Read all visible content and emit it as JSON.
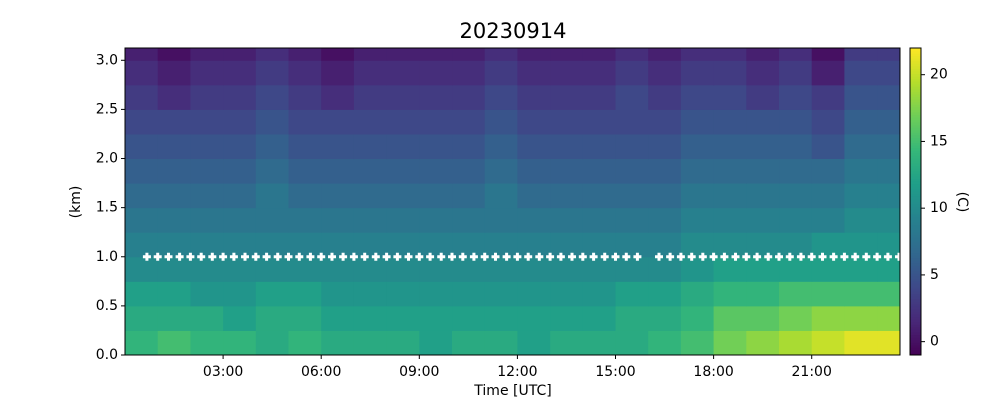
{
  "chart_data": {
    "type": "heatmap",
    "title": "20230914",
    "xlabel": "Time [UTC]",
    "ylabel": "(km)",
    "colorbar_label": "(C)",
    "colormap": "viridis",
    "xlim": [
      0,
      23.7
    ],
    "ylim": [
      0,
      3.125
    ],
    "xticks": [
      {
        "value": 3,
        "label": "03:00"
      },
      {
        "value": 6,
        "label": "06:00"
      },
      {
        "value": 9,
        "label": "09:00"
      },
      {
        "value": 12,
        "label": "12:00"
      },
      {
        "value": 15,
        "label": "15:00"
      },
      {
        "value": 18,
        "label": "18:00"
      },
      {
        "value": 21,
        "label": "21:00"
      }
    ],
    "yticks": [
      {
        "value": 0,
        "label": "0.0"
      },
      0.5,
      {
        "value": 1,
        "label": "1.0"
      },
      1.5,
      {
        "value": 2,
        "label": "2.0"
      },
      2.5,
      {
        "value": 3,
        "label": "3.0"
      }
    ],
    "clim": [
      -1,
      22
    ],
    "cticks": [
      0,
      5,
      10,
      15,
      20
    ],
    "x_edges": [
      0,
      1,
      2,
      3,
      4,
      5,
      6,
      7,
      8,
      9,
      10,
      11,
      12,
      13,
      14,
      15,
      16,
      17,
      18,
      19,
      20,
      21,
      22,
      23,
      23.7
    ],
    "y_edges": [
      0,
      0.25,
      0.5,
      0.75,
      1,
      1.25,
      1.5,
      1.75,
      2,
      2.25,
      2.5,
      2.75,
      3,
      3.125
    ],
    "z": [
      [
        14,
        15,
        14,
        14,
        13,
        14,
        13,
        13,
        13,
        12,
        13,
        13,
        12,
        13,
        13,
        13,
        14,
        15,
        17,
        18,
        19,
        20,
        21,
        21
      ],
      [
        13,
        13,
        13,
        12,
        13,
        13,
        12,
        12,
        12,
        12,
        12,
        12,
        12,
        12,
        12,
        13,
        13,
        14,
        16,
        16,
        17,
        18,
        18,
        18
      ],
      [
        12,
        12,
        11,
        11,
        12,
        12,
        11,
        11,
        11,
        11,
        11,
        11,
        11,
        11,
        11,
        12,
        12,
        13,
        14,
        14,
        15,
        15,
        15,
        15
      ],
      [
        10,
        10,
        10,
        10,
        10,
        10,
        10,
        10,
        10,
        10,
        10,
        10,
        10,
        10,
        10,
        10,
        10,
        11,
        12,
        12,
        12,
        12,
        12,
        12
      ],
      [
        9,
        9,
        9,
        9,
        9,
        9,
        9,
        9,
        9,
        9,
        9,
        9,
        9,
        9,
        9,
        9,
        9,
        10,
        10,
        10,
        10,
        11,
        11,
        11
      ],
      [
        8,
        8,
        8,
        8,
        8,
        8,
        8,
        8,
        8,
        8,
        8,
        8,
        8,
        8,
        8,
        8,
        8,
        9,
        9,
        9,
        9,
        9,
        10,
        10
      ],
      [
        7,
        7,
        7,
        7,
        8,
        7,
        7,
        7,
        7,
        7,
        7,
        8,
        7,
        7,
        7,
        7,
        7,
        8,
        8,
        8,
        8,
        8,
        9,
        9
      ],
      [
        6,
        6,
        6,
        6,
        7,
        6,
        6,
        6,
        6,
        6,
        6,
        7,
        6,
        6,
        6,
        6,
        6,
        7,
        7,
        7,
        7,
        7,
        8,
        8
      ],
      [
        5,
        5,
        5,
        5,
        6,
        5,
        5,
        5,
        5,
        5,
        5,
        6,
        5,
        5,
        5,
        5,
        5,
        6,
        6,
        6,
        6,
        5,
        7,
        7
      ],
      [
        4,
        4,
        4,
        4,
        5,
        4,
        4,
        4,
        4,
        4,
        4,
        5,
        4,
        4,
        4,
        4,
        4,
        5,
        5,
        5,
        5,
        4,
        6,
        6
      ],
      [
        3,
        2,
        3,
        3,
        4,
        3,
        2,
        3,
        3,
        3,
        3,
        4,
        3,
        3,
        3,
        4,
        3,
        4,
        4,
        3,
        4,
        3,
        5,
        5
      ],
      [
        2,
        1,
        2,
        2,
        3,
        2,
        1,
        2,
        2,
        2,
        2,
        3,
        2,
        2,
        2,
        3,
        2,
        3,
        3,
        2,
        3,
        1,
        4,
        4
      ],
      [
        1,
        0,
        1,
        1,
        2,
        1,
        0,
        1,
        1,
        1,
        1,
        2,
        1,
        1,
        1,
        2,
        1,
        2,
        2,
        1,
        2,
        0,
        3,
        3
      ]
    ],
    "markers": {
      "color": "#ffffff",
      "x": [
        0.67,
        1,
        1.33,
        1.67,
        2,
        2.33,
        2.67,
        3,
        3.33,
        3.67,
        4,
        4.33,
        4.67,
        5,
        5.33,
        5.67,
        6,
        6.33,
        6.67,
        7,
        7.33,
        7.67,
        8,
        8.33,
        8.67,
        9,
        9.33,
        9.67,
        10,
        10.33,
        10.67,
        11,
        11.33,
        11.67,
        12,
        12.33,
        12.67,
        13,
        13.33,
        13.67,
        14,
        14.33,
        14.67,
        15,
        15.33,
        15.67,
        16.33,
        16.67,
        17,
        17.33,
        17.67,
        18,
        18.33,
        18.67,
        19,
        19.33,
        19.67,
        20,
        20.33,
        20.67,
        21,
        21.33,
        21.67,
        22,
        22.33,
        22.67,
        23,
        23.33,
        23.67
      ],
      "y": [
        1,
        1,
        1,
        1,
        1,
        1,
        1,
        1,
        1,
        1,
        1,
        1,
        1,
        1,
        1,
        1,
        1,
        1,
        1,
        1,
        1,
        1,
        1,
        1,
        1,
        1,
        1,
        1,
        1,
        1,
        1,
        1,
        1,
        1,
        1,
        1,
        1,
        1,
        1,
        1,
        1,
        1,
        1,
        1,
        1,
        1,
        1,
        1,
        1,
        1,
        1,
        1,
        1,
        1,
        1,
        1,
        1,
        1,
        1,
        1,
        1,
        1,
        1,
        1,
        1,
        1,
        1,
        1,
        1
      ]
    }
  }
}
